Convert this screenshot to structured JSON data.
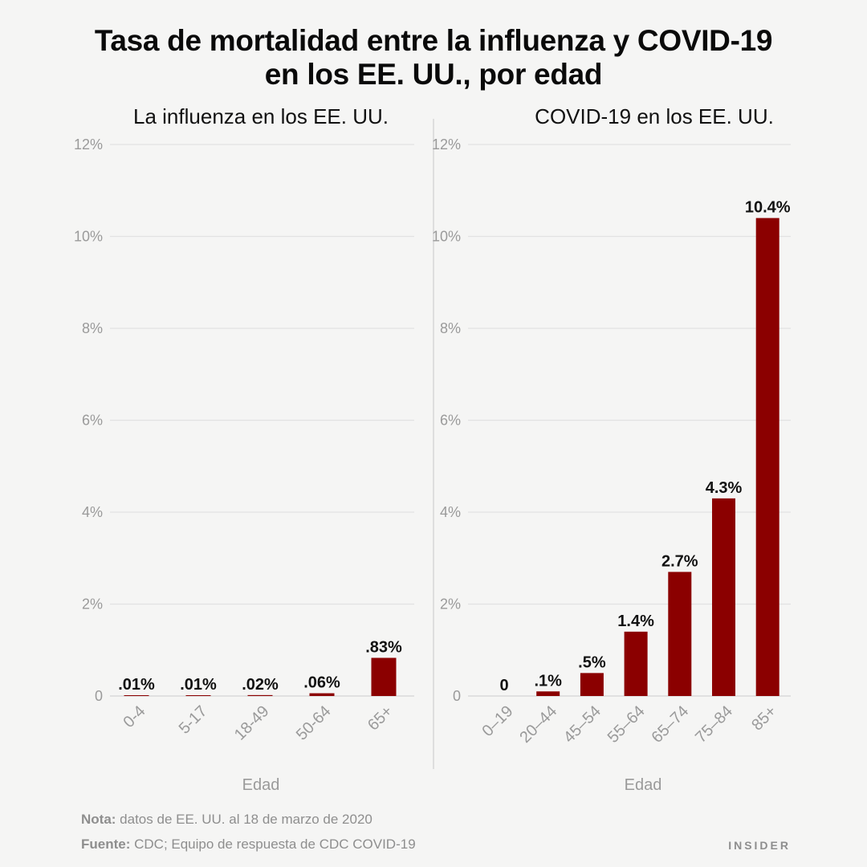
{
  "title_line1": "Tasa de mortalidad entre la influenza y COVID-19",
  "title_line2": "en los EE. UU., por edad",
  "note_label": "Nota:",
  "note_text": " datos de EE. UU. al 18 de marzo de 2020",
  "source_label": "Fuente:",
  "source_text": " CDC; Equipo de respuesta de CDC COVID-19",
  "brand": "INSIDER",
  "colors": {
    "bar": "#8b0000",
    "grid": "#e2e2e2",
    "axis_text": "#9a9a9a"
  },
  "chart_data": [
    {
      "type": "bar",
      "title": "La influenza en los EE. UU.",
      "xlabel": "Edad",
      "ylabel": "",
      "ylim": [
        0,
        12
      ],
      "yticks": [
        "0",
        "2%",
        "4%",
        "6%",
        "8%",
        "10%",
        "12%"
      ],
      "categories": [
        "0-4",
        "5-17",
        "18-49",
        "50-64",
        "65+"
      ],
      "values": [
        0.01,
        0.01,
        0.02,
        0.06,
        0.83
      ],
      "data_labels": [
        ".01%",
        ".01%",
        ".02%",
        ".06%",
        ".83%"
      ],
      "grid": true
    },
    {
      "type": "bar",
      "title": "COVID-19 en los EE. UU.",
      "xlabel": "Edad",
      "ylabel": "",
      "ylim": [
        0,
        12
      ],
      "yticks": [
        "0",
        "2%",
        "4%",
        "6%",
        "8%",
        "10%",
        "12%"
      ],
      "categories": [
        "0–19",
        "20–44",
        "45–54",
        "55–64",
        "65–74",
        "75–84",
        "85+"
      ],
      "values": [
        0,
        0.1,
        0.5,
        1.4,
        2.7,
        4.3,
        10.4
      ],
      "data_labels": [
        "0",
        ".1%",
        ".5%",
        "1.4%",
        "2.7%",
        "4.3%",
        "10.4%"
      ],
      "grid": true
    }
  ]
}
